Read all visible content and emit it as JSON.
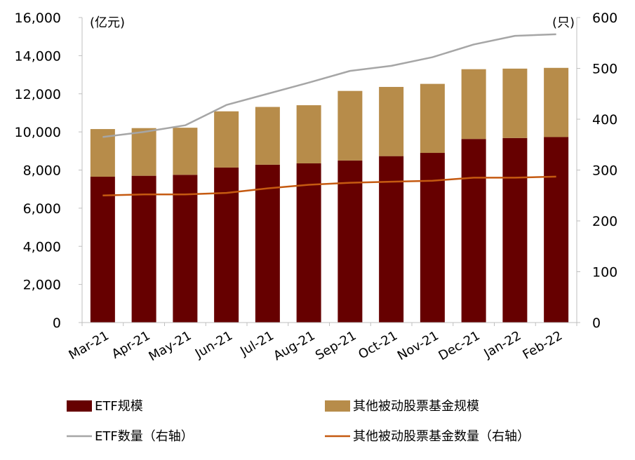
{
  "chart_data": {
    "type": "bar",
    "stacked": true,
    "categories": [
      "Mar-21",
      "Apr-21",
      "May-21",
      "Jun-21",
      "Jul-21",
      "Aug-21",
      "Sep-21",
      "Oct-21",
      "Nov-21",
      "Dec-21",
      "Jan-22",
      "Feb-22"
    ],
    "series": [
      {
        "name": "ETF规模",
        "type": "bar",
        "axis": "left",
        "color": "#660000",
        "values": [
          7650,
          7700,
          7750,
          8130,
          8280,
          8350,
          8500,
          8730,
          8900,
          9630,
          9680,
          9730
        ]
      },
      {
        "name": "其他被动股票基金规模",
        "type": "bar",
        "axis": "left",
        "color": "#B78C4A",
        "values": [
          2500,
          2500,
          2470,
          2950,
          3030,
          3050,
          3650,
          3630,
          3620,
          3660,
          3640,
          3630
        ]
      },
      {
        "name": "ETF数量（右轴）",
        "type": "line",
        "axis": "right",
        "color": "#A6A6A6",
        "values": [
          365,
          375,
          388,
          428,
          450,
          472,
          495,
          505,
          522,
          547,
          564,
          567
        ]
      },
      {
        "name": "其他被动股票基金数量（右轴）",
        "type": "line",
        "axis": "right",
        "color": "#C55A11",
        "values": [
          250,
          252,
          252,
          255,
          264,
          271,
          275,
          277,
          279,
          285,
          285,
          287
        ]
      }
    ],
    "y_left": {
      "unit": "(亿元)",
      "ylim": [
        0,
        16000
      ],
      "ticks": [
        "0",
        "2,000",
        "4,000",
        "6,000",
        "8,000",
        "10,000",
        "12,000",
        "14,000",
        "16,000"
      ]
    },
    "y_right": {
      "unit": "(只)",
      "ylim": [
        0,
        600
      ],
      "ticks": [
        "0",
        "100",
        "200",
        "300",
        "400",
        "500",
        "600"
      ]
    },
    "grid": false,
    "legend_placement": "bottom"
  }
}
